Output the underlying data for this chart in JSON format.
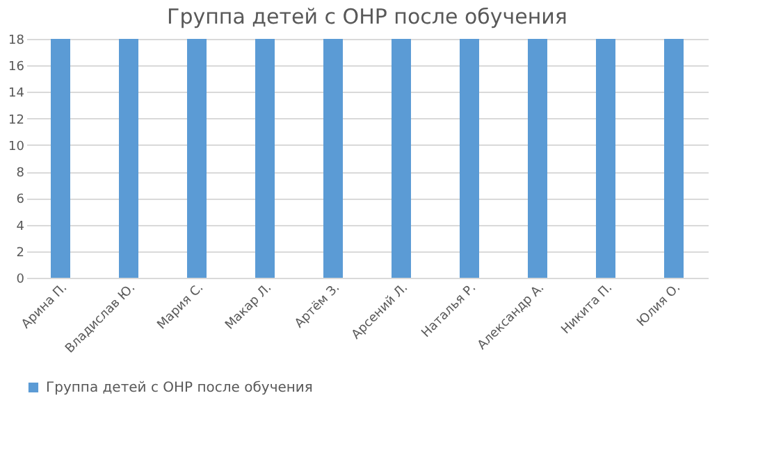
{
  "chart_data": {
    "type": "bar",
    "title": "Группа детей с ОНР после обучения",
    "categories": [
      "Арина П.",
      "Владислав Ю.",
      "Мария С.",
      "Макар Л.",
      "Артём З.",
      "Арсений Л.",
      "Наталья Р.",
      "Александр А.",
      "Никита П.",
      "Юлия О."
    ],
    "series": [
      {
        "name": "Группа детей с ОНР после обучения",
        "color": "#5b9bd5",
        "values": [
          18,
          18,
          18,
          18,
          18,
          18,
          18,
          18,
          18,
          18
        ]
      }
    ],
    "ylim": [
      0,
      18
    ],
    "yticks": [
      0,
      2,
      4,
      6,
      8,
      10,
      12,
      14,
      16,
      18
    ],
    "grid": "y",
    "legend": "bottom"
  }
}
